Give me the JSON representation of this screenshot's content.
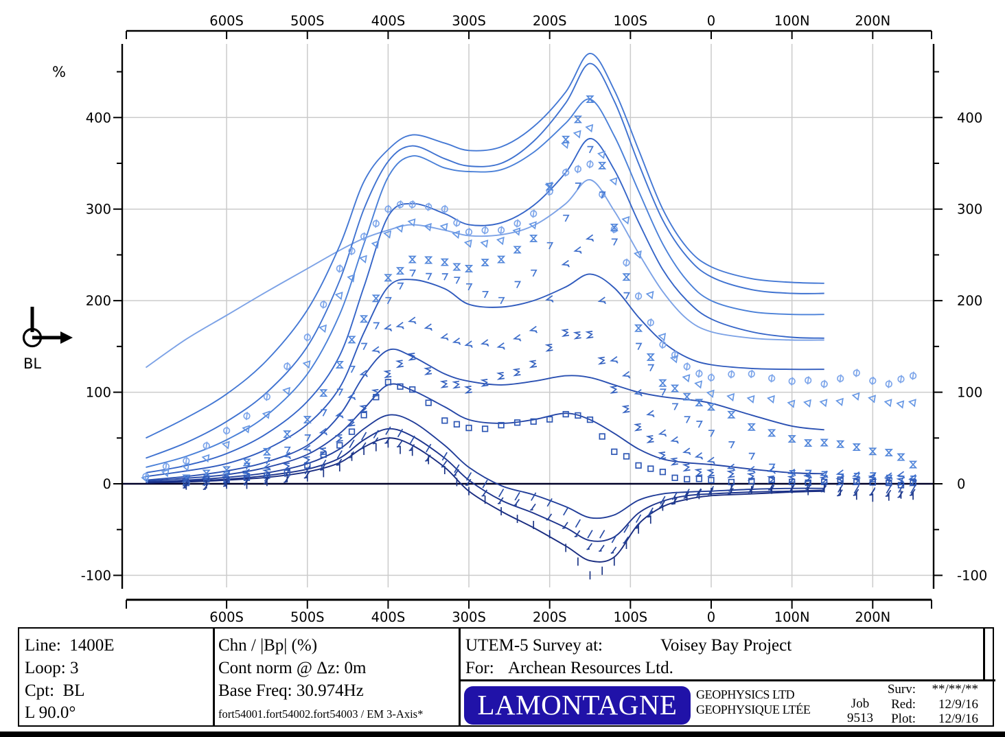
{
  "chart_data": {
    "type": "line",
    "title": "UTEM-5 channel profile plot, Chn / |Bp| (%) vs station",
    "ylabel": "%",
    "component_label": "BL",
    "x_axis": {
      "tick_stations": [
        -600,
        -500,
        -400,
        -300,
        -200,
        -100,
        0,
        100,
        200
      ],
      "tick_labels": [
        "600S",
        "500S",
        "400S",
        "300S",
        "200S",
        "100S",
        "0",
        "100N",
        "200N"
      ],
      "range": [
        -725,
        275
      ]
    },
    "y_axis": {
      "tick_values": [
        400,
        300,
        200,
        100,
        0,
        -100
      ],
      "tick_labels": [
        "400",
        "300",
        "200",
        "100",
        "0",
        "-100"
      ],
      "minor_step": 50,
      "range": [
        -120,
        478
      ]
    },
    "grid": true,
    "grid_color": "#cbcbcb",
    "zero_line_color": "#000028",
    "stations": [
      -700,
      -650,
      -600,
      -550,
      -500,
      -460,
      -430,
      -400,
      -370,
      -330,
      -300,
      -260,
      -220,
      -180,
      -150,
      -120,
      -90,
      -60,
      -30,
      0,
      50,
      100,
      140,
      180,
      220,
      250
    ],
    "line_series": [
      {
        "name": "cont-1",
        "color": "#7CA2E6",
        "values": [
          127,
          158,
          184,
          210,
          235,
          255,
          268,
          277,
          283,
          277,
          271,
          272,
          282,
          306,
          332,
          298,
          252,
          210,
          180,
          166,
          159,
          157,
          157,
          null,
          null,
          null
        ]
      },
      {
        "name": "cont-2",
        "color": "#4478D4",
        "values": [
          50,
          72,
          98,
          135,
          190,
          260,
          330,
          365,
          381,
          372,
          364,
          368,
          390,
          428,
          470,
          430,
          365,
          300,
          258,
          237,
          224,
          220,
          219,
          null,
          null,
          null
        ]
      },
      {
        "name": "cont-3",
        "color": "#3F72D0",
        "values": [
          28,
          45,
          68,
          100,
          150,
          222,
          300,
          352,
          369,
          355,
          347,
          350,
          374,
          416,
          459,
          418,
          350,
          288,
          248,
          226,
          212,
          208,
          208,
          null,
          null,
          null
        ]
      },
      {
        "name": "cont-4",
        "color": "#4A80D8",
        "values": [
          18,
          30,
          48,
          75,
          120,
          185,
          262,
          335,
          358,
          345,
          341,
          343,
          362,
          394,
          420,
          380,
          320,
          262,
          222,
          200,
          188,
          185,
          185,
          null,
          null,
          null
        ]
      },
      {
        "name": "cont-5",
        "color": "#3565C8",
        "values": [
          12,
          20,
          33,
          55,
          90,
          140,
          215,
          292,
          306,
          295,
          283,
          285,
          304,
          340,
          377,
          343,
          286,
          234,
          200,
          180,
          166,
          160,
          159,
          null,
          null,
          null
        ]
      },
      {
        "name": "cont-6",
        "color": "#2F5ABD",
        "values": [
          8,
          14,
          22,
          38,
          65,
          105,
          165,
          215,
          223,
          213,
          196,
          193,
          200,
          215,
          229,
          214,
          182,
          155,
          138,
          130,
          126,
          125,
          125,
          null,
          null,
          null
        ]
      },
      {
        "name": "cont-7",
        "color": "#2A50B2",
        "values": [
          4,
          8,
          14,
          24,
          42,
          75,
          118,
          146,
          139,
          120,
          112,
          108,
          112,
          118,
          116,
          108,
          100,
          95,
          92,
          88,
          75,
          63,
          59,
          null,
          null,
          null
        ]
      },
      {
        "name": "cont-8",
        "color": "#2546A6",
        "values": [
          3,
          6,
          10,
          18,
          32,
          55,
          82,
          108,
          102,
          84,
          70,
          66,
          70,
          77,
          70,
          55,
          38,
          27,
          23,
          21,
          16,
          12,
          11,
          null,
          null,
          null
        ]
      },
      {
        "name": "cont-9",
        "color": "#203C98",
        "values": [
          2,
          4,
          7,
          12,
          22,
          38,
          60,
          75,
          68,
          42,
          18,
          -2,
          -12,
          -25,
          -37,
          -34,
          -18,
          -11,
          -9,
          -8,
          -6,
          -5,
          -5,
          null,
          null,
          null
        ]
      },
      {
        "name": "cont-10",
        "color": "#1C338C",
        "values": [
          1,
          3,
          5,
          9,
          16,
          28,
          48,
          60,
          52,
          28,
          4,
          -18,
          -32,
          -48,
          -62,
          -58,
          -32,
          -19,
          -13,
          -11,
          -9,
          -8,
          -7,
          null,
          null,
          null
        ]
      },
      {
        "name": "cont-11",
        "color": "#192C80",
        "values": [
          1,
          2,
          4,
          7,
          13,
          23,
          40,
          50,
          42,
          18,
          -8,
          -30,
          -48,
          -68,
          -84,
          -80,
          -44,
          -25,
          -17,
          -13,
          -11,
          -9,
          -8,
          null,
          null,
          null
        ]
      }
    ],
    "symbol_series": [
      {
        "name": "ch-a",
        "marker": "phi",
        "color": "#7EA6EA",
        "values": [
          8,
          25,
          58,
          95,
          160,
          235,
          270,
          300,
          305,
          300,
          275,
          277,
          295,
          340,
          349,
          278,
          205,
          152,
          128,
          116,
          120,
          112,
          109,
          121,
          109,
          118
        ]
      },
      {
        "name": "ch-b",
        "marker": "nabla",
        "color": "#6697E4",
        "values": [
          5,
          18,
          42,
          75,
          130,
          205,
          245,
          272,
          285,
          280,
          262,
          265,
          282,
          370,
          388,
          330,
          250,
          160,
          115,
          98,
          92,
          87,
          88,
          95,
          88,
          88
        ]
      },
      {
        "name": "ch-c",
        "marker": "hourglass",
        "color": "#5286DA",
        "values": [
          null,
          6,
          15,
          35,
          70,
          130,
          180,
          225,
          245,
          242,
          235,
          245,
          268,
          376,
          420,
          280,
          170,
          110,
          95,
          84,
          62,
          49,
          45,
          40,
          34,
          21
        ]
      },
      {
        "name": "ch-d",
        "marker": "seven",
        "color": "#4477D2",
        "values": [
          null,
          4,
          10,
          25,
          50,
          100,
          150,
          200,
          230,
          226,
          215,
          200,
          230,
          290,
          365,
          264,
          150,
          100,
          70,
          55,
          30,
          11,
          10,
          8,
          6,
          5
        ]
      },
      {
        "name": "ch-e",
        "marker": "four",
        "color": "#3D6DCA",
        "values": [
          null,
          3,
          8,
          18,
          38,
          75,
          120,
          170,
          178,
          160,
          152,
          150,
          168,
          240,
          268,
          135,
          99,
          55,
          35,
          25,
          15,
          12,
          10,
          9,
          8,
          6
        ]
      },
      {
        "name": "ch-f",
        "marker": "sigma",
        "color": "#3562C0",
        "values": [
          null,
          2,
          5,
          12,
          26,
          50,
          82,
          120,
          139,
          109,
          103,
          118,
          131,
          165,
          163,
          103,
          62,
          31,
          18,
          12,
          8,
          5,
          4,
          3,
          3,
          2
        ]
      },
      {
        "name": "ch-g",
        "marker": "square",
        "color": "#2E57B4",
        "values": [
          null,
          1,
          4,
          9,
          20,
          42,
          75,
          111,
          103,
          69,
          61,
          64,
          68,
          76,
          70,
          35,
          20,
          13,
          5,
          4,
          3,
          2,
          2,
          2,
          1,
          1
        ]
      },
      {
        "name": "ch-h",
        "marker": "slash",
        "color": "#284CA6",
        "values": [
          null,
          1,
          3,
          7,
          15,
          32,
          52,
          58,
          48,
          30,
          8,
          -10,
          -14,
          -30,
          -55,
          -60,
          -38,
          -18,
          -10,
          -7,
          -5,
          -5,
          -4,
          -6,
          -6,
          -6
        ]
      },
      {
        "name": "ch-i",
        "marker": "tick",
        "color": "#224097",
        "values": [
          null,
          -1,
          1,
          4,
          10,
          24,
          42,
          48,
          40,
          22,
          2,
          -18,
          -25,
          -45,
          -68,
          -72,
          -45,
          -22,
          -12,
          -8,
          -6,
          -5,
          -5,
          -9,
          -10,
          -9
        ]
      },
      {
        "name": "ch-j",
        "marker": "bar",
        "color": "#1C3586",
        "values": [
          null,
          -2,
          -1,
          2,
          7,
          18,
          36,
          44,
          35,
          15,
          -8,
          -30,
          -45,
          -70,
          -100,
          -85,
          -50,
          -25,
          -14,
          -9,
          -7,
          -6,
          -5,
          -13,
          -14,
          -13
        ]
      }
    ]
  },
  "footer": {
    "left_lines": [
      "Line:  1400E",
      "Loop: 3",
      "Cpt:  BL",
      "L 90.0°"
    ],
    "mid_lines": [
      "Chn / |Bp| (%)",
      "Cont norm @ Δz: 0m",
      "Base Freq: 30.974Hz"
    ],
    "mid_small": "fort54001.fort54002.fort54003 / EM 3-Axis*",
    "survey_label": "UTEM-5 Survey at:",
    "survey_value": "Voisey Bay Project",
    "for_label": "For:",
    "for_value": "Archean Resources Ltd.",
    "logo_text": "LAMONTAGNE",
    "company_lines": [
      "GEOPHYSICS LTD",
      "GEOPHYSIQUE LTÉE"
    ],
    "job_label": "Job",
    "job_number": "9513",
    "dates": [
      {
        "label": "Surv:",
        "value": "**/**/**"
      },
      {
        "label": "Red:",
        "value": "12/9/16"
      },
      {
        "label": "Plot:",
        "value": "12/9/16"
      }
    ]
  }
}
